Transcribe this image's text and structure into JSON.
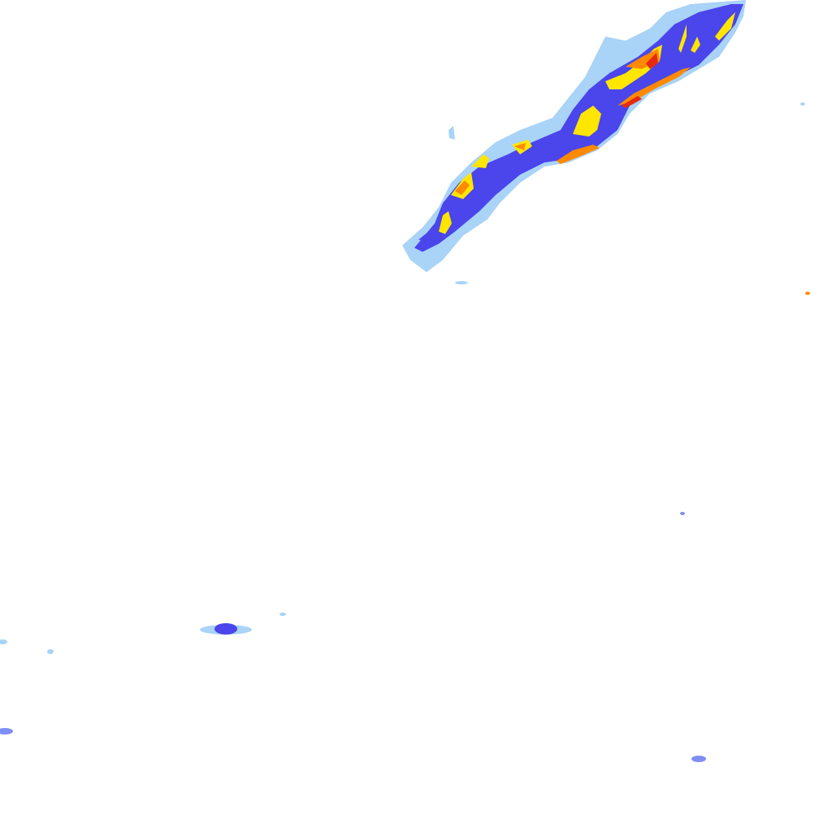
{
  "map": {
    "layer": "precipitation-radar",
    "colors": {
      "background": "#ffffff",
      "light": "#a9d3f7",
      "moderate_light": "#7f8ef5",
      "moderate": "#4b45ec",
      "heavy": "#ffe600",
      "very_heavy": "#ff8a00",
      "intense": "#e52a10"
    }
  }
}
